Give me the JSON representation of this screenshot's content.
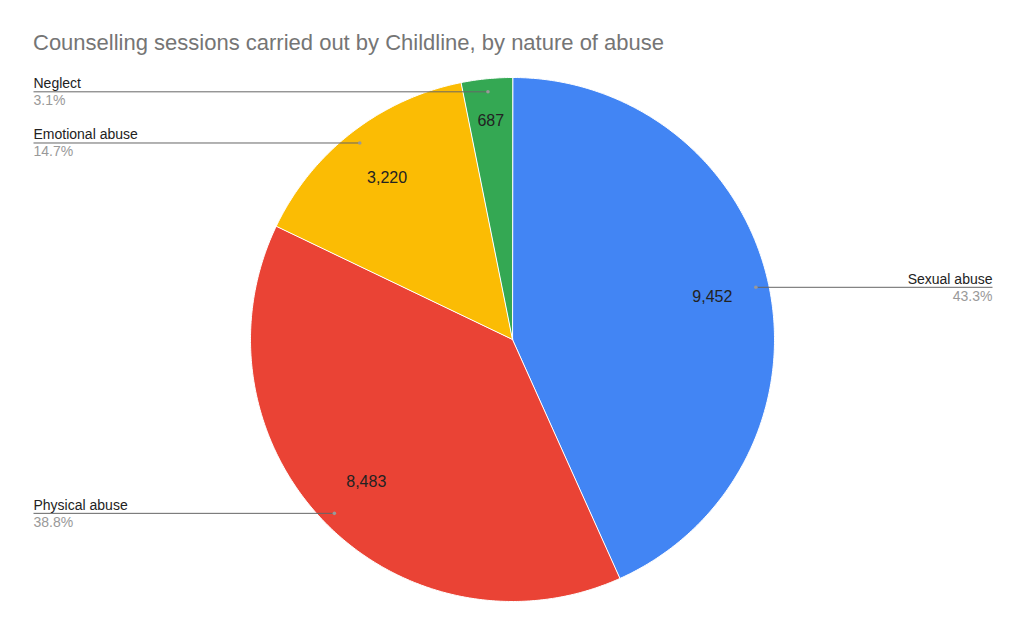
{
  "chart_data": {
    "type": "pie",
    "title": "Counselling sessions carried out by Childline, by nature of abuse",
    "categories": [
      "Sexual abuse",
      "Physical abuse",
      "Emotional abuse",
      "Neglect"
    ],
    "values": [
      9452,
      8483,
      3220,
      687
    ],
    "value_labels": [
      "9,452",
      "8,483",
      "3,220",
      "687"
    ],
    "percentages": [
      {
        "value": 43.3,
        "label": "43.3%"
      },
      {
        "value": 38.8,
        "label": "38.8%"
      },
      {
        "value": 14.7,
        "label": "14.7%"
      },
      {
        "value": 3.1,
        "label": "3.1%"
      }
    ],
    "colors": [
      "#4285f4",
      "#ea4335",
      "#fbbc04",
      "#34a853"
    ],
    "data_labels": true
  }
}
